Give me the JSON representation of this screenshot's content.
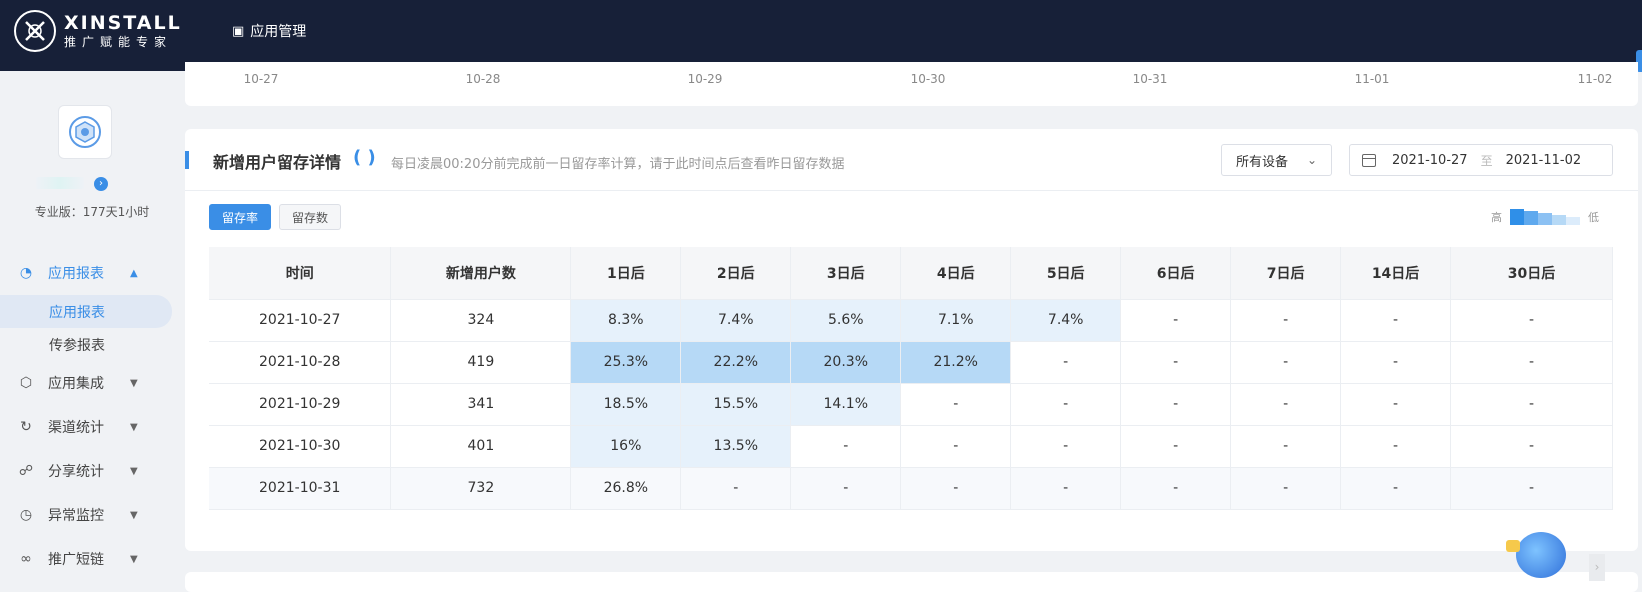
{
  "app": {
    "brand_name": "XINSTALL",
    "brand_slogan": "推广赋能专家",
    "nav_item": "应用管理"
  },
  "sidebar": {
    "plan_text": "专业版：177天1小时",
    "menu": {
      "app_report": "应用报表",
      "sub_app_report": "应用报表",
      "sub_param_report": "传参报表",
      "app_integration": "应用集成",
      "channel_stats": "渠道统计",
      "share_stats": "分享统计",
      "anomaly_monitor": "异常监控",
      "short_link": "推广短链"
    }
  },
  "chart_axis": {
    "labels": [
      "10-27",
      "10-28",
      "10-29",
      "10-30",
      "10-31",
      "11-01",
      "11-02"
    ]
  },
  "retention": {
    "title": "新增用户留存详情",
    "hint": "每日凌晨00:20分前完成前一日留存率计算，请于此时间点后查看昨日留存数据",
    "device_filter": "所有设备",
    "date_start": "2021-10-27",
    "date_sep": "至",
    "date_end": "2021-11-02",
    "btn_rate": "留存率",
    "btn_count": "留存数",
    "legend_high": "高",
    "legend_low": "低",
    "legend_colors": [
      "#2f8fe8",
      "#5fa9ee",
      "#8cc1f3",
      "#b6d9f6",
      "#dcecfb"
    ],
    "headers": [
      "时间",
      "新增用户数",
      "1日后",
      "2日后",
      "3日后",
      "4日后",
      "5日后",
      "6日后",
      "7日后",
      "14日后",
      "30日后"
    ],
    "rows": [
      [
        "2021-10-27",
        "324",
        "8.3%",
        "7.4%",
        "5.6%",
        "7.1%",
        "7.4%",
        "-",
        "-",
        "-",
        "-"
      ],
      [
        "2021-10-28",
        "419",
        "25.3%",
        "22.2%",
        "20.3%",
        "21.2%",
        "-",
        "-",
        "-",
        "-",
        "-"
      ],
      [
        "2021-10-29",
        "341",
        "18.5%",
        "15.5%",
        "14.1%",
        "-",
        "-",
        "-",
        "-",
        "-",
        "-"
      ],
      [
        "2021-10-30",
        "401",
        "16%",
        "13.5%",
        "-",
        "-",
        "-",
        "-",
        "-",
        "-",
        "-"
      ],
      [
        "2021-10-31",
        "732",
        "26.8%",
        "-",
        "-",
        "-",
        "-",
        "-",
        "-",
        "-",
        "-"
      ]
    ],
    "heat_colors": {
      "low": "#e6f1fb",
      "high": "#b6d9f6"
    }
  }
}
